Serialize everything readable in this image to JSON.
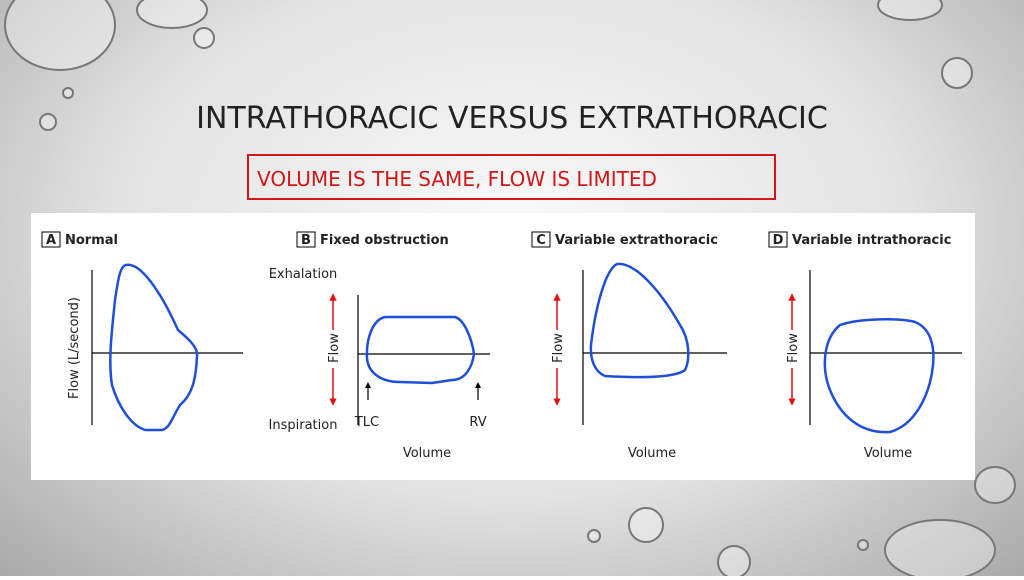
{
  "slide": {
    "title": "INTRATHORACIC VERSUS EXTRATHORACIC",
    "subtitle": "VOLUME IS THE SAME, FLOW IS LIMITED"
  },
  "panels": [
    {
      "letter": "A",
      "title": "Normal",
      "y_label": "Flow (L/second)"
    },
    {
      "letter": "B",
      "title": "Fixed obstruction",
      "top_label": "Exhalation",
      "bottom_label": "Inspiration",
      "y_label": "Flow",
      "markers": [
        "TLC",
        "RV"
      ],
      "x_label": "Volume"
    },
    {
      "letter": "C",
      "title": "Variable extrathoracic",
      "y_label": "Flow",
      "x_label": "Volume"
    },
    {
      "letter": "D",
      "title": "Variable intrathoracic",
      "y_label": "Flow",
      "x_label": "Volume"
    }
  ]
}
